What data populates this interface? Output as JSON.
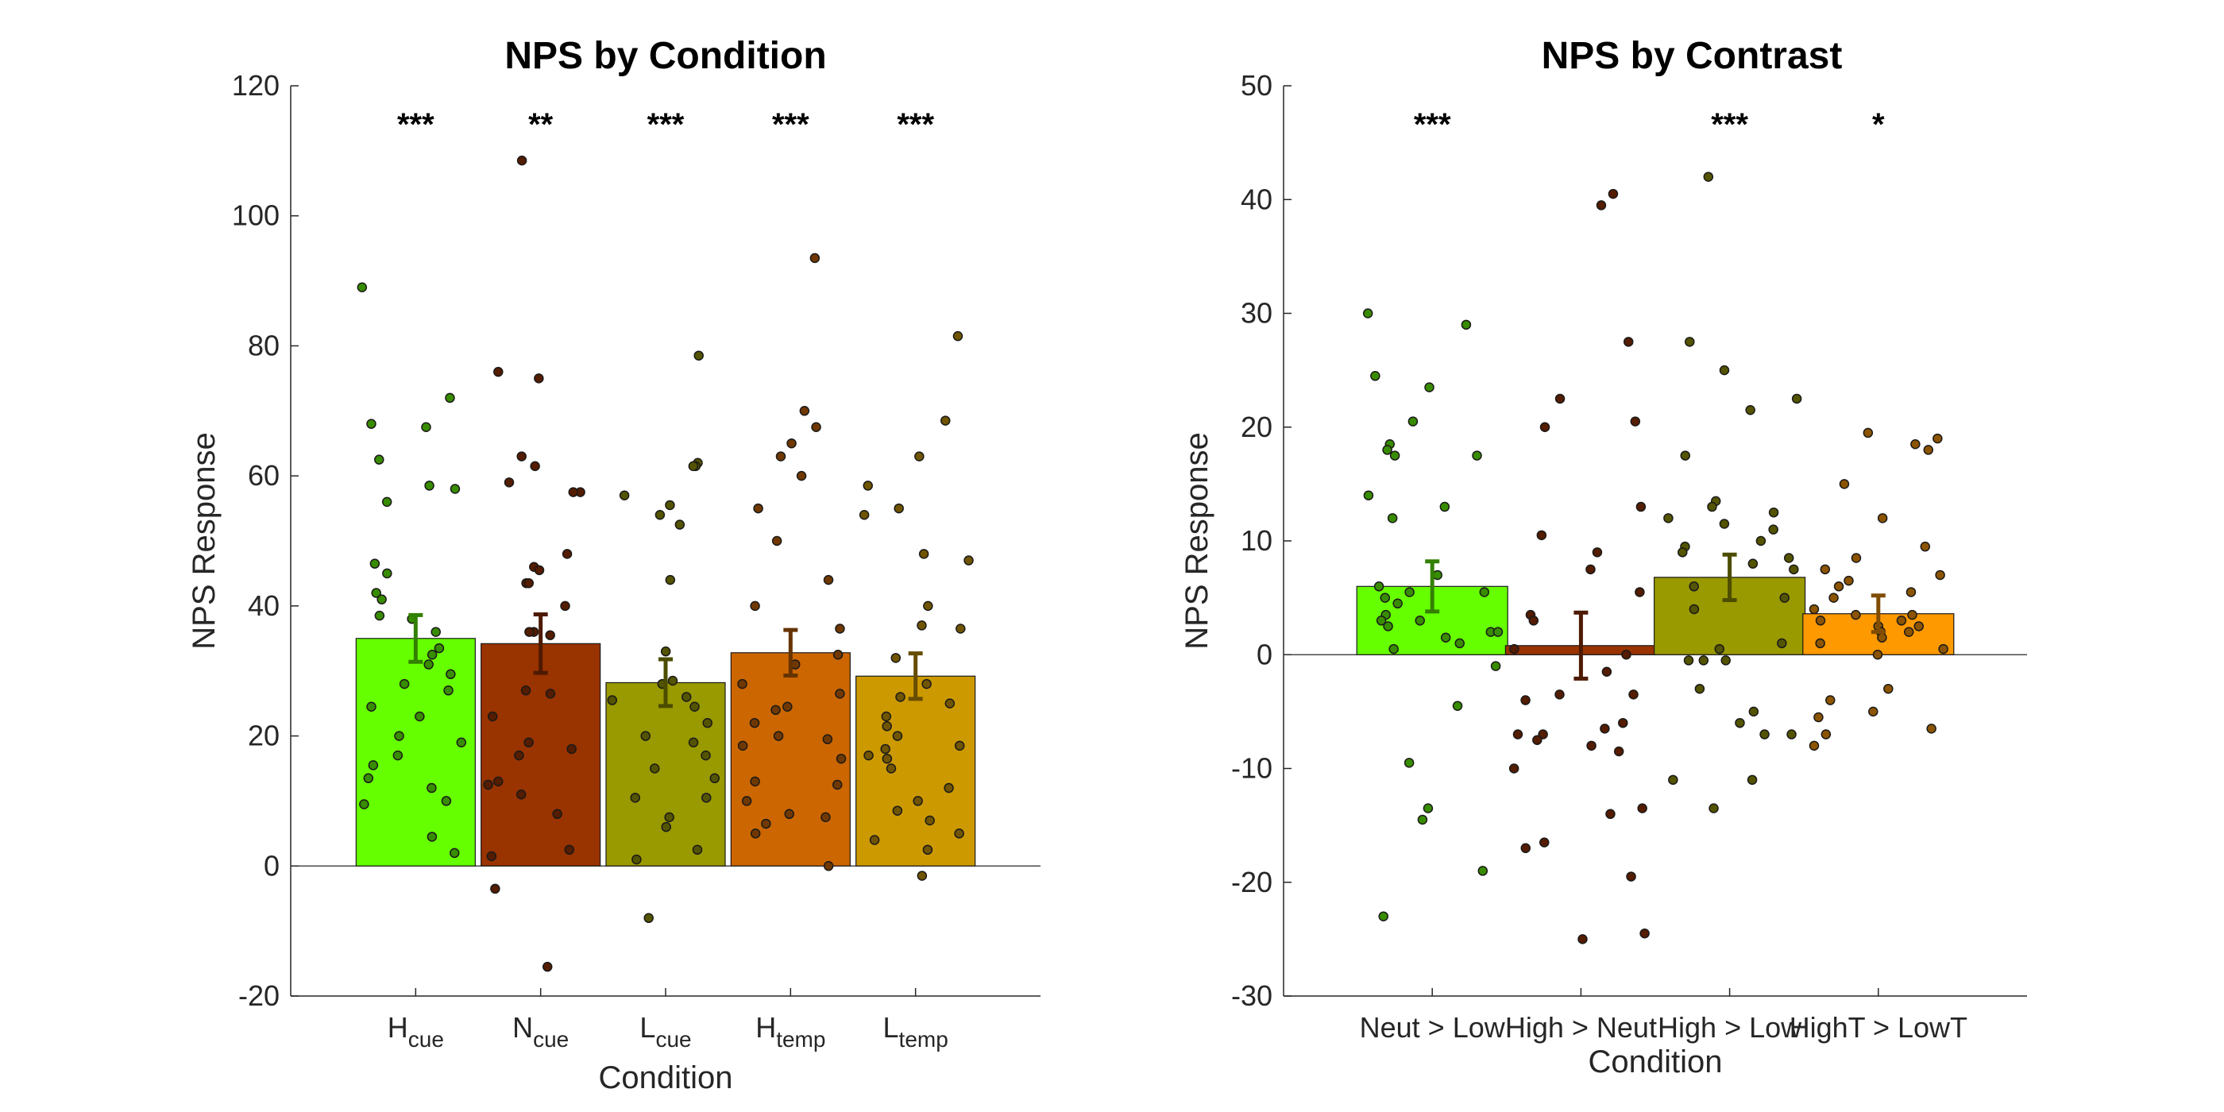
{
  "chart_data": [
    {
      "type": "bar",
      "title": "NPS by Condition",
      "xlabel": "Condition",
      "ylabel": "NPS Response",
      "ylim": [
        -20,
        120
      ],
      "yticks": [
        -20,
        0,
        20,
        40,
        60,
        80,
        100,
        120
      ],
      "categories": [
        {
          "base": "H",
          "sub": "cue"
        },
        {
          "base": "N",
          "sub": "cue"
        },
        {
          "base": "L",
          "sub": "cue"
        },
        {
          "base": "H",
          "sub": "temp"
        },
        {
          "base": "L",
          "sub": "temp"
        }
      ],
      "values": [
        35,
        34.2,
        28.2,
        32.8,
        29.2
      ],
      "errors": [
        3.6,
        4.5,
        3.6,
        3.5,
        3.5
      ],
      "significance": [
        "***",
        "**",
        "***",
        "***",
        "***"
      ],
      "colors": [
        "#66ff00",
        "#993300",
        "#999900",
        "#cc6600",
        "#cc9900"
      ],
      "points": [
        [
          89,
          72,
          68,
          67.5,
          62.5,
          58.5,
          58,
          56,
          46.5,
          45,
          42,
          41,
          38.5,
          38,
          36,
          33.5,
          32.5,
          31,
          29.5,
          28,
          27,
          24.5,
          23,
          20,
          19,
          17,
          15.5,
          13.5,
          12,
          10,
          9.5,
          4.5,
          2
        ],
        [
          108.5,
          76,
          75,
          63,
          61.5,
          59,
          57.5,
          57.5,
          48,
          46,
          45.5,
          43.5,
          43.5,
          40,
          36,
          36,
          35.5,
          27,
          26.5,
          23,
          19,
          18,
          17,
          13,
          12.5,
          11,
          8,
          2.5,
          1.5,
          -3.5,
          -15.5
        ],
        [
          78.5,
          62,
          61.5,
          61.5,
          57,
          55.5,
          54,
          52.5,
          44,
          33,
          28.5,
          28,
          26,
          25.5,
          24.5,
          22,
          20,
          19,
          17,
          15,
          13.5,
          10.5,
          10.5,
          7.5,
          6,
          2.5,
          1,
          -8
        ],
        [
          93.5,
          70,
          67.5,
          65,
          63,
          60,
          55,
          50,
          44,
          40,
          36.5,
          32.5,
          31,
          28,
          26.5,
          24.5,
          24,
          22,
          20,
          19.5,
          18.5,
          16.5,
          13,
          12.5,
          10,
          8,
          7.5,
          6.5,
          5,
          0
        ],
        [
          81.5,
          68.5,
          63,
          58.5,
          55,
          54,
          48,
          47,
          40,
          37,
          36.5,
          32,
          28,
          26,
          25,
          23,
          21.5,
          20,
          18.5,
          18,
          17,
          16.5,
          15,
          12,
          10,
          8.5,
          7,
          5,
          4,
          2.5,
          -1.5
        ]
      ]
    },
    {
      "type": "bar",
      "title": "NPS by Contrast",
      "xlabel": "Condition",
      "ylabel": "NPS Response",
      "ylim": [
        -30,
        50
      ],
      "yticks": [
        -30,
        -20,
        -10,
        0,
        10,
        20,
        30,
        40,
        50
      ],
      "categories": [
        "Neut > Low",
        "High > Neut",
        "High > Low",
        "HighT > LowT"
      ],
      "values": [
        6,
        0.8,
        6.8,
        3.6
      ],
      "errors": [
        2.2,
        2.9,
        2,
        1.6
      ],
      "significance": [
        "***",
        "",
        "***",
        "*"
      ],
      "colors": [
        "#66ff00",
        "#993300",
        "#999900",
        "#ff9900"
      ],
      "points": [
        [
          30,
          29,
          24.5,
          23.5,
          20.5,
          18.5,
          18,
          17.5,
          17.5,
          14,
          13,
          12,
          7,
          6,
          5.5,
          5.5,
          5,
          4.5,
          3.5,
          3,
          3,
          2.5,
          2,
          2,
          1.5,
          1,
          0.5,
          -1,
          -4.5,
          -9.5,
          -13.5,
          -14.5,
          -19,
          -23
        ],
        [
          40.5,
          39.5,
          27.5,
          22.5,
          20.5,
          20,
          13,
          10.5,
          9,
          7.5,
          5.5,
          3.5,
          3,
          0.5,
          0,
          -1.5,
          -3.5,
          -3.5,
          -4,
          -6,
          -6.5,
          -7,
          -7,
          -7.5,
          -8,
          -8.5,
          -10,
          -13.5,
          -14,
          -16.5,
          -17,
          -19.5,
          -24.5,
          -25
        ],
        [
          42,
          27.5,
          25,
          22.5,
          21.5,
          17.5,
          13.5,
          13,
          12.5,
          12,
          11.5,
          11,
          10,
          9.5,
          9,
          8.5,
          8,
          7.5,
          6,
          5,
          4,
          1,
          0.5,
          -0.5,
          -0.5,
          -0.5,
          -3,
          -5,
          -6,
          -7,
          -7,
          -11,
          -11,
          -13.5
        ],
        [
          19.5,
          19,
          18.5,
          18,
          15,
          12,
          9.5,
          8.5,
          7.5,
          7,
          6.5,
          6,
          5.5,
          5,
          4,
          3.5,
          3.5,
          3,
          3,
          2.5,
          2.5,
          2,
          2,
          1.5,
          1,
          0.5,
          0,
          -3,
          -4,
          -5,
          -5.5,
          -6.5,
          -7,
          -8
        ]
      ]
    }
  ]
}
